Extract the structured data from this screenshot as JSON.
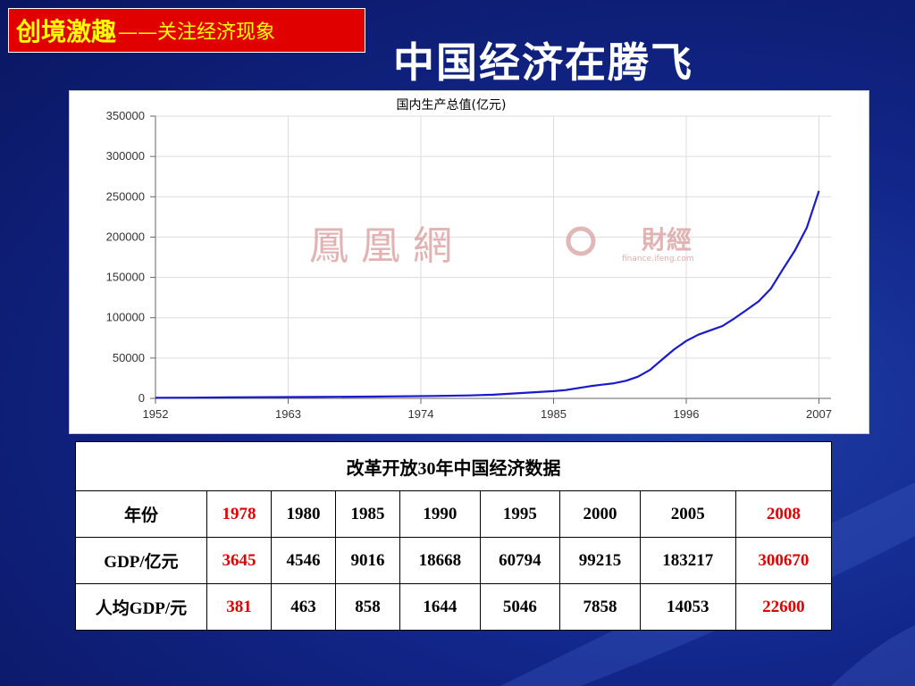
{
  "topic": {
    "main": "创境激趣",
    "sub": "——关注经济现象"
  },
  "slide": {
    "title": "中国经济在腾飞"
  },
  "watermark": {
    "brand": "鳳凰網",
    "section": "財經",
    "url": "finance.ifeng.com"
  },
  "chart_data": {
    "type": "line",
    "title": "国内生产总值(亿元)",
    "xlabel": "",
    "ylabel": "",
    "xlim": [
      1952,
      2008
    ],
    "ylim": [
      0,
      350000
    ],
    "x_ticks": [
      1952,
      1963,
      1974,
      1985,
      1996,
      2007
    ],
    "y_ticks": [
      0,
      50000,
      100000,
      150000,
      200000,
      250000,
      300000,
      350000
    ],
    "grid": true,
    "line_color": "#1a1acc",
    "series": [
      {
        "x": [
          1952,
          1955,
          1960,
          1965,
          1970,
          1975,
          1978,
          1980,
          1985,
          1986,
          1988,
          1989,
          1990,
          1991,
          1992,
          1993,
          1994,
          1995,
          1996,
          1997,
          1998,
          1999,
          2000,
          2001,
          2002,
          2003,
          2004,
          2005,
          2006,
          2007
        ],
        "values": [
          679,
          910,
          1457,
          1717,
          2253,
          2997,
          3645,
          4546,
          9016,
          10275,
          15042,
          16992,
          18668,
          21781,
          26923,
          35334,
          48198,
          60794,
          71177,
          78973,
          84402,
          89677,
          99215,
          109655,
          120333,
          135823,
          159878,
          183217,
          211924,
          257306
        ]
      }
    ]
  },
  "table": {
    "caption": "改革开放30年中国经济数据",
    "rows": [
      {
        "label": "年份",
        "cells": [
          "1978",
          "1980",
          "1985",
          "1990",
          "1995",
          "2000",
          "2005",
          "2008"
        ]
      },
      {
        "label": "GDP/亿元",
        "cells": [
          "3645",
          "4546",
          "9016",
          "18668",
          "60794",
          "99215",
          "183217",
          "300670"
        ]
      },
      {
        "label": "人均GDP/元",
        "cells": [
          "381",
          "463",
          "858",
          "1644",
          "5046",
          "7858",
          "14053",
          "22600"
        ]
      }
    ],
    "highlight_color": "#e00000"
  }
}
